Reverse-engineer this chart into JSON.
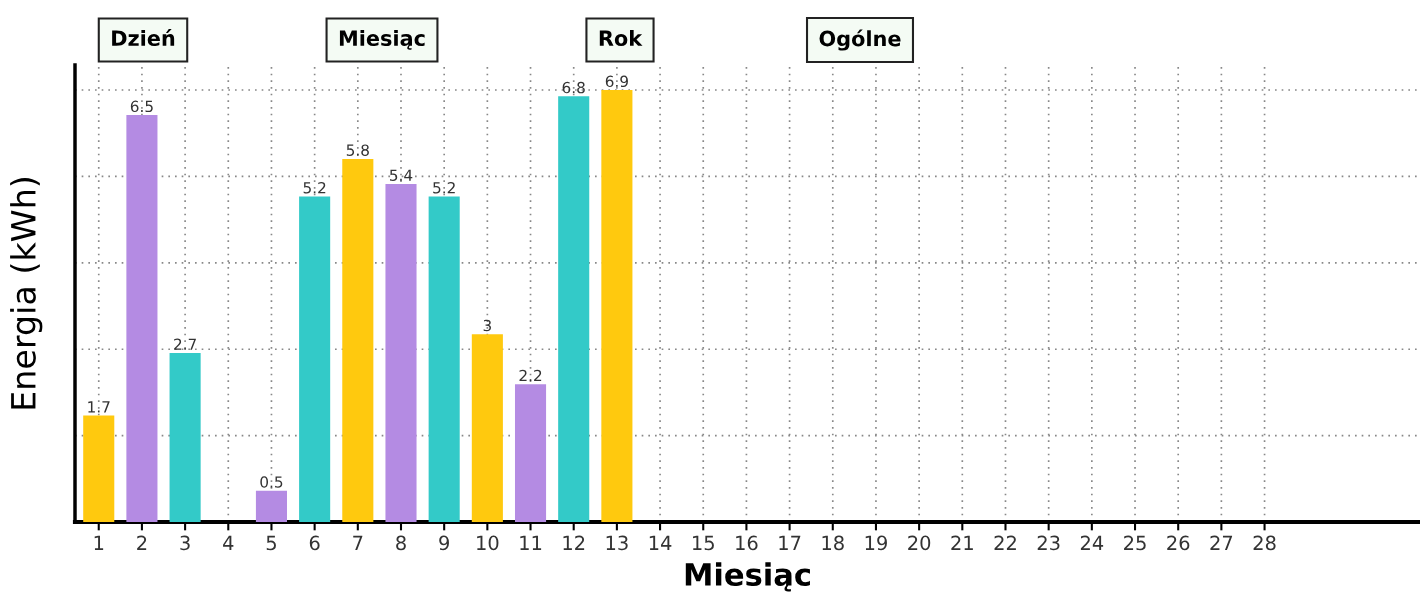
{
  "chart_data": {
    "type": "bar",
    "xlabel": "Miesiąc",
    "ylabel": "Energia (kWh)",
    "annotations": [
      "Dzień",
      "Miesiąc",
      "Rok",
      "Ogólne"
    ],
    "categories": [
      "1",
      "2",
      "3",
      "4",
      "5",
      "6",
      "7",
      "8",
      "9",
      "10",
      "11",
      "12",
      "13",
      "14",
      "15",
      "16",
      "17",
      "18",
      "19",
      "20",
      "21",
      "22",
      "23",
      "24",
      "25",
      "26",
      "27",
      "28"
    ],
    "values": [
      1.7,
      6.5,
      2.7,
      null,
      0.5,
      5.2,
      5.8,
      5.4,
      5.2,
      3,
      2.2,
      6.8,
      6.9,
      null,
      null,
      null,
      null,
      null,
      null,
      null,
      null,
      null,
      null,
      null,
      null,
      null,
      null,
      null
    ],
    "colors": [
      "#ffc90e",
      "#b48be3",
      "#33cac8",
      "#ffc90e",
      "#b48be3",
      "#33cac8",
      "#ffc90e",
      "#b48be3",
      "#33cac8",
      "#ffc90e",
      "#b48be3",
      "#33cac8",
      "#ffc90e",
      "#b48be3",
      "#33cac8",
      "#ffc90e",
      "#b48be3",
      "#33cac8",
      "#ffc90e",
      "#b48be3",
      "#33cac8",
      "#ffc90e",
      "#b48be3",
      "#33cac8",
      "#ffc90e",
      "#b48be3",
      "#33cac8",
      "#ffc90e"
    ],
    "data_labels": true,
    "ylim": [
      0,
      7.3
    ],
    "yticks": [
      {
        "value": 1.38,
        "label": null
      },
      {
        "value": 2.76,
        "label": null
      },
      {
        "value": 4.14,
        "label": null
      },
      {
        "value": 5.52,
        "label": null
      },
      {
        "value": 6.9,
        "label": null
      }
    ],
    "grid": true
  }
}
